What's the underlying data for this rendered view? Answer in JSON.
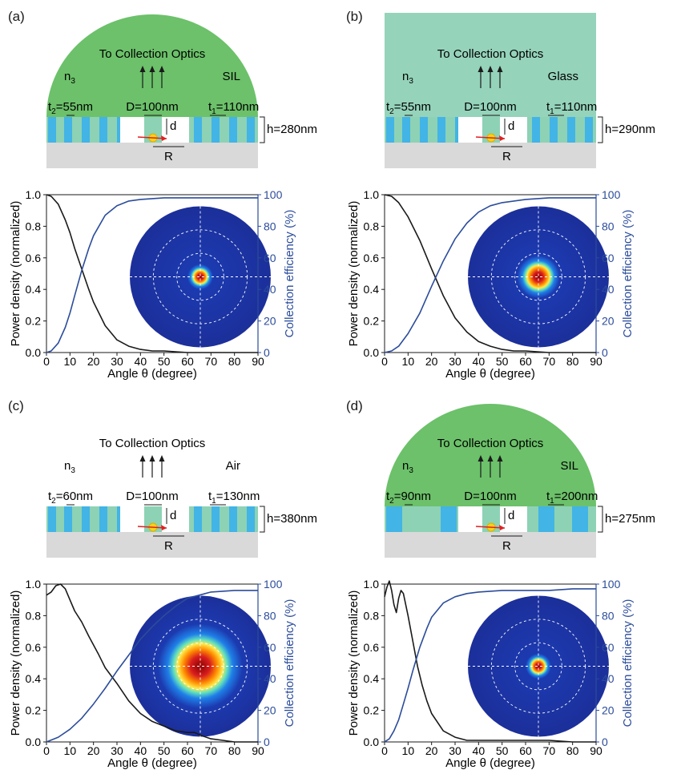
{
  "colors": {
    "green_sil": "#6cc16a",
    "green_glass": "#95d3bb",
    "cyan": "#42b4e6",
    "mint": "#8dd2b5",
    "gray": "#d9d9d9",
    "blue_curve": "#2b4c9b",
    "black_curve": "#1a1a1a"
  },
  "panels": [
    {
      "label": "(a)",
      "top_shape": "dome",
      "top_color": "#6cc16a",
      "title": "To Collection Optics",
      "n_label": "n",
      "n_sub": "3",
      "medium": "SIL",
      "t2": "=55nm",
      "D": "D=100nm",
      "t1": "=110nm",
      "h": "h=280nm",
      "grating": {
        "gap_positions": [
          0.13,
          0.35,
          0.65,
          0.87
        ],
        "thick": [
          0.04,
          0.04,
          0.04,
          0.04
        ]
      }
    },
    {
      "label": "(b)",
      "top_shape": "rect",
      "top_color": "#95d3bb",
      "title": "To Collection Optics",
      "n_label": "n",
      "n_sub": "3",
      "medium": "Glass",
      "t2": "=55nm",
      "D": "D=100nm",
      "t1": "=110nm",
      "h": "h=290nm"
    },
    {
      "label": "(c)",
      "top_shape": "none",
      "top_color": "#ffffff",
      "title": "To Collection Optics",
      "n_label": "n",
      "n_sub": "3",
      "medium": "Air",
      "t2": "=60nm",
      "D": "D=100nm",
      "t1": "=130nm",
      "h": "h=380nm"
    },
    {
      "label": "(d)",
      "top_shape": "dome",
      "top_color": "#6cc16a",
      "title": "To Collection Optics",
      "n_label": "n",
      "n_sub": "3",
      "medium": "SIL",
      "t2": "=90nm",
      "D": "D=100nm",
      "t1": "=200nm",
      "h": "h=275nm"
    }
  ],
  "common": {
    "t_letter": "t",
    "t2_sub": "2",
    "t1_sub": "1",
    "d_label": "d",
    "R_label": "R"
  },
  "chart_data": [
    {
      "type": "line",
      "xlabel": "Angle θ (degree)",
      "ylabel": "Power density (normalized)",
      "y2label": "Collection efficiency (%)",
      "xlim": [
        0,
        90
      ],
      "ylim": [
        0,
        1.0
      ],
      "y2lim": [
        0,
        100
      ],
      "xticks": [
        "0",
        "10",
        "20",
        "30",
        "40",
        "50",
        "60",
        "70",
        "80",
        "90"
      ],
      "yticks": [
        "0.0",
        "0.2",
        "0.4",
        "0.6",
        "0.8",
        "1.0"
      ],
      "y2ticks": [
        "0",
        "20",
        "40",
        "60",
        "80",
        "100"
      ],
      "series": [
        {
          "axis": "left",
          "x": [
            0,
            2,
            5,
            8,
            10,
            12,
            15,
            18,
            20,
            25,
            30,
            35,
            40,
            45,
            50,
            60,
            70,
            80,
            90
          ],
          "values": [
            1.0,
            0.99,
            0.94,
            0.84,
            0.76,
            0.66,
            0.53,
            0.4,
            0.32,
            0.17,
            0.08,
            0.04,
            0.02,
            0.01,
            0.01,
            0.0,
            0.0,
            0.0,
            0.0
          ]
        },
        {
          "axis": "right",
          "x": [
            0,
            2,
            5,
            8,
            10,
            12,
            15,
            18,
            20,
            25,
            30,
            35,
            40,
            50,
            60,
            70,
            80,
            90
          ],
          "values": [
            0,
            1,
            6,
            16,
            25,
            36,
            52,
            66,
            74,
            87,
            93,
            96,
            97,
            98,
            98,
            98,
            98,
            98
          ]
        }
      ],
      "inset": {
        "spot_radius_frac": 0.12
      }
    },
    {
      "type": "line",
      "xlabel": "Angle θ (degree)",
      "ylabel": "Power density (normalized)",
      "y2label": "Collection efficiency (%)",
      "xlim": [
        0,
        90
      ],
      "ylim": [
        0,
        1.0
      ],
      "y2lim": [
        0,
        100
      ],
      "xticks": [
        "0",
        "10",
        "20",
        "30",
        "40",
        "50",
        "60",
        "70",
        "80",
        "90"
      ],
      "yticks": [
        "0.0",
        "0.2",
        "0.4",
        "0.6",
        "0.8",
        "1.0"
      ],
      "y2ticks": [
        "0",
        "20",
        "40",
        "60",
        "80",
        "100"
      ],
      "series": [
        {
          "axis": "left",
          "x": [
            0,
            3,
            6,
            10,
            15,
            20,
            25,
            30,
            35,
            40,
            45,
            50,
            55,
            60,
            70,
            80,
            90
          ],
          "values": [
            1.0,
            0.99,
            0.95,
            0.86,
            0.71,
            0.53,
            0.36,
            0.22,
            0.13,
            0.07,
            0.04,
            0.02,
            0.01,
            0.01,
            0.0,
            0.0,
            0.0
          ]
        },
        {
          "axis": "right",
          "x": [
            0,
            3,
            6,
            10,
            15,
            20,
            25,
            30,
            35,
            40,
            45,
            50,
            60,
            70,
            80,
            90
          ],
          "values": [
            0,
            1,
            4,
            12,
            25,
            42,
            58,
            72,
            82,
            89,
            93,
            95,
            97,
            98,
            98,
            98
          ]
        }
      ],
      "inset": {
        "spot_radius_frac": 0.2
      }
    },
    {
      "type": "line",
      "xlabel": "Angle θ (degree)",
      "ylabel": "Power density (normalized)",
      "y2label": "Collection efficiency (%)",
      "xlim": [
        0,
        90
      ],
      "ylim": [
        0,
        1.0
      ],
      "y2lim": [
        0,
        100
      ],
      "xticks": [
        "0",
        "10",
        "20",
        "30",
        "40",
        "50",
        "60",
        "70",
        "80",
        "90"
      ],
      "yticks": [
        "0.0",
        "0.2",
        "0.4",
        "0.6",
        "0.8",
        "1.0"
      ],
      "y2ticks": [
        "0",
        "20",
        "40",
        "60",
        "80",
        "100"
      ],
      "series": [
        {
          "axis": "left",
          "x": [
            0,
            2,
            4,
            6,
            8,
            10,
            12,
            15,
            18,
            22,
            25,
            30,
            35,
            40,
            45,
            50,
            55,
            60,
            63,
            66,
            70,
            75,
            80,
            90
          ],
          "values": [
            0.93,
            0.95,
            0.99,
            1.0,
            0.97,
            0.9,
            0.83,
            0.76,
            0.67,
            0.56,
            0.47,
            0.37,
            0.26,
            0.18,
            0.13,
            0.1,
            0.07,
            0.06,
            0.06,
            0.04,
            0.02,
            0.01,
            0.0,
            0.0
          ]
        },
        {
          "axis": "right",
          "x": [
            0,
            5,
            10,
            15,
            20,
            25,
            30,
            35,
            40,
            45,
            50,
            55,
            60,
            65,
            70,
            80,
            90
          ],
          "values": [
            0,
            3,
            8,
            15,
            24,
            34,
            45,
            55,
            65,
            73,
            80,
            86,
            91,
            93,
            95,
            96,
            96
          ]
        }
      ],
      "inset": {
        "spot_radius_frac": 0.4
      }
    },
    {
      "type": "line",
      "xlabel": "Angle θ (degree)",
      "ylabel": "Power density (normalized)",
      "y2label": "Collection efficiency (%)",
      "xlim": [
        0,
        90
      ],
      "ylim": [
        0,
        1.0
      ],
      "y2lim": [
        0,
        100
      ],
      "xticks": [
        "0",
        "10",
        "20",
        "30",
        "40",
        "50",
        "60",
        "70",
        "80",
        "90"
      ],
      "yticks": [
        "0.0",
        "0.2",
        "0.4",
        "0.6",
        "0.8",
        "1.0"
      ],
      "y2ticks": [
        "0",
        "20",
        "40",
        "60",
        "80",
        "100"
      ],
      "series": [
        {
          "axis": "left",
          "x": [
            0,
            1,
            2,
            3,
            4,
            5,
            6,
            7,
            8,
            10,
            12,
            14,
            16,
            18,
            20,
            25,
            30,
            35,
            40,
            50,
            60,
            70,
            80,
            90
          ],
          "values": [
            0.92,
            0.98,
            1.02,
            0.96,
            0.87,
            0.82,
            0.91,
            0.96,
            0.94,
            0.8,
            0.64,
            0.48,
            0.36,
            0.26,
            0.18,
            0.07,
            0.03,
            0.01,
            0.01,
            0.01,
            0.01,
            0.01,
            0.0,
            0.0
          ]
        },
        {
          "axis": "right",
          "x": [
            0,
            2,
            4,
            6,
            8,
            10,
            12,
            15,
            18,
            20,
            25,
            30,
            35,
            40,
            50,
            60,
            70,
            80,
            90
          ],
          "values": [
            0,
            2,
            7,
            14,
            24,
            34,
            45,
            60,
            72,
            79,
            88,
            92,
            94,
            95,
            96,
            96,
            96,
            97,
            97
          ]
        }
      ],
      "inset": {
        "spot_radius_frac": 0.12
      }
    }
  ]
}
